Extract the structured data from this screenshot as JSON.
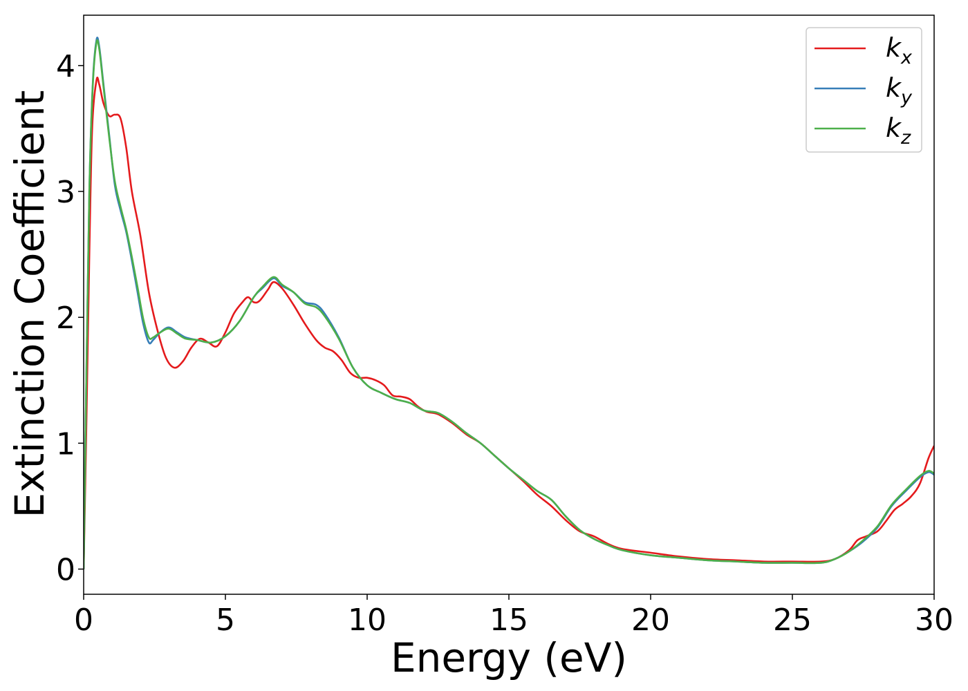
{
  "chart_data": {
    "type": "line",
    "title": "",
    "xlabel": "Energy (eV)",
    "ylabel": "Extinction Coefficient",
    "xlim": [
      0,
      30
    ],
    "ylim": [
      -0.2,
      4.4
    ],
    "xticks": [
      0,
      5,
      10,
      15,
      20,
      25,
      30
    ],
    "yticks": [
      0,
      1,
      2,
      3,
      4
    ],
    "grid": false,
    "legend": "top-right",
    "series": [
      {
        "name": "k",
        "subscript": "x",
        "color": "#e41a1c",
        "points": [
          [
            0,
            0
          ],
          [
            0.1,
            1.2
          ],
          [
            0.2,
            2.5
          ],
          [
            0.3,
            3.5
          ],
          [
            0.45,
            3.88
          ],
          [
            0.55,
            3.85
          ],
          [
            0.7,
            3.7
          ],
          [
            0.9,
            3.6
          ],
          [
            1.1,
            3.61
          ],
          [
            1.3,
            3.58
          ],
          [
            1.5,
            3.35
          ],
          [
            1.7,
            3.0
          ],
          [
            2.0,
            2.65
          ],
          [
            2.3,
            2.2
          ],
          [
            2.6,
            1.9
          ],
          [
            2.9,
            1.68
          ],
          [
            3.2,
            1.6
          ],
          [
            3.5,
            1.65
          ],
          [
            3.8,
            1.76
          ],
          [
            4.1,
            1.83
          ],
          [
            4.4,
            1.8
          ],
          [
            4.7,
            1.77
          ],
          [
            5.0,
            1.88
          ],
          [
            5.3,
            2.03
          ],
          [
            5.6,
            2.12
          ],
          [
            5.8,
            2.16
          ],
          [
            6.0,
            2.12
          ],
          [
            6.2,
            2.13
          ],
          [
            6.5,
            2.22
          ],
          [
            6.7,
            2.28
          ],
          [
            7.0,
            2.23
          ],
          [
            7.4,
            2.1
          ],
          [
            7.8,
            1.95
          ],
          [
            8.2,
            1.82
          ],
          [
            8.5,
            1.76
          ],
          [
            8.8,
            1.73
          ],
          [
            9.1,
            1.66
          ],
          [
            9.4,
            1.56
          ],
          [
            9.7,
            1.52
          ],
          [
            10.0,
            1.52
          ],
          [
            10.3,
            1.5
          ],
          [
            10.6,
            1.46
          ],
          [
            10.9,
            1.38
          ],
          [
            11.2,
            1.37
          ],
          [
            11.5,
            1.35
          ],
          [
            11.8,
            1.29
          ],
          [
            12.1,
            1.25
          ],
          [
            12.5,
            1.23
          ],
          [
            13.0,
            1.16
          ],
          [
            13.5,
            1.07
          ],
          [
            14.0,
            1.0
          ],
          [
            14.5,
            0.9
          ],
          [
            15.0,
            0.8
          ],
          [
            15.5,
            0.7
          ],
          [
            16.0,
            0.59
          ],
          [
            16.5,
            0.5
          ],
          [
            17.0,
            0.39
          ],
          [
            17.5,
            0.3
          ],
          [
            18.0,
            0.26
          ],
          [
            18.5,
            0.2
          ],
          [
            19.0,
            0.16
          ],
          [
            20.0,
            0.13
          ],
          [
            21.0,
            0.1
          ],
          [
            22.0,
            0.08
          ],
          [
            23.0,
            0.07
          ],
          [
            24.0,
            0.06
          ],
          [
            25.0,
            0.06
          ],
          [
            26.0,
            0.06
          ],
          [
            26.5,
            0.08
          ],
          [
            27.0,
            0.15
          ],
          [
            27.3,
            0.23
          ],
          [
            27.6,
            0.26
          ],
          [
            28.0,
            0.3
          ],
          [
            28.3,
            0.38
          ],
          [
            28.6,
            0.47
          ],
          [
            28.9,
            0.52
          ],
          [
            29.2,
            0.58
          ],
          [
            29.5,
            0.68
          ],
          [
            29.8,
            0.88
          ],
          [
            30.0,
            0.98
          ]
        ]
      },
      {
        "name": "k",
        "subscript": "y",
        "color": "#377eb8",
        "points": [
          [
            0,
            0
          ],
          [
            0.1,
            1.6
          ],
          [
            0.2,
            3.0
          ],
          [
            0.32,
            3.85
          ],
          [
            0.45,
            4.2
          ],
          [
            0.55,
            4.15
          ],
          [
            0.7,
            3.85
          ],
          [
            0.9,
            3.45
          ],
          [
            1.1,
            3.05
          ],
          [
            1.3,
            2.85
          ],
          [
            1.5,
            2.68
          ],
          [
            1.7,
            2.45
          ],
          [
            1.9,
            2.2
          ],
          [
            2.1,
            1.95
          ],
          [
            2.3,
            1.8
          ],
          [
            2.45,
            1.82
          ],
          [
            2.7,
            1.88
          ],
          [
            3.0,
            1.92
          ],
          [
            3.3,
            1.88
          ],
          [
            3.6,
            1.84
          ],
          [
            4.0,
            1.82
          ],
          [
            4.5,
            1.8
          ],
          [
            5.0,
            1.85
          ],
          [
            5.5,
            1.97
          ],
          [
            6.0,
            2.16
          ],
          [
            6.3,
            2.23
          ],
          [
            6.7,
            2.31
          ],
          [
            7.0,
            2.25
          ],
          [
            7.4,
            2.2
          ],
          [
            7.8,
            2.12
          ],
          [
            8.2,
            2.1
          ],
          [
            8.5,
            2.03
          ],
          [
            9.0,
            1.84
          ],
          [
            9.5,
            1.6
          ],
          [
            10.0,
            1.46
          ],
          [
            10.5,
            1.4
          ],
          [
            11.0,
            1.35
          ],
          [
            11.5,
            1.32
          ],
          [
            12.0,
            1.26
          ],
          [
            12.5,
            1.24
          ],
          [
            13.0,
            1.17
          ],
          [
            13.5,
            1.08
          ],
          [
            14.0,
            1.0
          ],
          [
            14.5,
            0.9
          ],
          [
            15.0,
            0.8
          ],
          [
            15.5,
            0.71
          ],
          [
            16.0,
            0.62
          ],
          [
            16.5,
            0.55
          ],
          [
            17.0,
            0.42
          ],
          [
            17.5,
            0.31
          ],
          [
            18.0,
            0.24
          ],
          [
            18.5,
            0.19
          ],
          [
            19.0,
            0.15
          ],
          [
            20.0,
            0.11
          ],
          [
            21.0,
            0.09
          ],
          [
            22.0,
            0.07
          ],
          [
            23.0,
            0.06
          ],
          [
            24.0,
            0.05
          ],
          [
            25.0,
            0.05
          ],
          [
            26.0,
            0.05
          ],
          [
            26.5,
            0.08
          ],
          [
            27.0,
            0.14
          ],
          [
            27.5,
            0.22
          ],
          [
            28.0,
            0.33
          ],
          [
            28.5,
            0.5
          ],
          [
            29.0,
            0.62
          ],
          [
            29.5,
            0.73
          ],
          [
            29.8,
            0.77
          ],
          [
            30.0,
            0.75
          ]
        ]
      },
      {
        "name": "k",
        "subscript": "z",
        "color": "#4daf4a",
        "points": [
          [
            0,
            0
          ],
          [
            0.1,
            1.6
          ],
          [
            0.2,
            3.0
          ],
          [
            0.32,
            3.83
          ],
          [
            0.45,
            4.18
          ],
          [
            0.55,
            4.13
          ],
          [
            0.7,
            3.83
          ],
          [
            0.9,
            3.43
          ],
          [
            1.1,
            3.08
          ],
          [
            1.3,
            2.88
          ],
          [
            1.5,
            2.7
          ],
          [
            1.7,
            2.48
          ],
          [
            1.9,
            2.24
          ],
          [
            2.1,
            1.99
          ],
          [
            2.3,
            1.84
          ],
          [
            2.45,
            1.84
          ],
          [
            2.7,
            1.88
          ],
          [
            3.0,
            1.91
          ],
          [
            3.3,
            1.87
          ],
          [
            3.6,
            1.83
          ],
          [
            4.0,
            1.82
          ],
          [
            4.5,
            1.8
          ],
          [
            5.0,
            1.85
          ],
          [
            5.5,
            1.97
          ],
          [
            6.0,
            2.16
          ],
          [
            6.3,
            2.24
          ],
          [
            6.7,
            2.32
          ],
          [
            7.0,
            2.26
          ],
          [
            7.4,
            2.2
          ],
          [
            7.8,
            2.11
          ],
          [
            8.2,
            2.08
          ],
          [
            8.5,
            2.01
          ],
          [
            9.0,
            1.83
          ],
          [
            9.5,
            1.6
          ],
          [
            10.0,
            1.46
          ],
          [
            10.5,
            1.4
          ],
          [
            11.0,
            1.35
          ],
          [
            11.5,
            1.32
          ],
          [
            12.0,
            1.26
          ],
          [
            12.5,
            1.24
          ],
          [
            13.0,
            1.17
          ],
          [
            13.5,
            1.08
          ],
          [
            14.0,
            1.0
          ],
          [
            14.5,
            0.9
          ],
          [
            15.0,
            0.8
          ],
          [
            15.5,
            0.71
          ],
          [
            16.0,
            0.62
          ],
          [
            16.5,
            0.55
          ],
          [
            17.0,
            0.42
          ],
          [
            17.5,
            0.31
          ],
          [
            18.0,
            0.24
          ],
          [
            18.5,
            0.19
          ],
          [
            19.0,
            0.15
          ],
          [
            20.0,
            0.11
          ],
          [
            21.0,
            0.09
          ],
          [
            22.0,
            0.07
          ],
          [
            23.0,
            0.06
          ],
          [
            24.0,
            0.05
          ],
          [
            25.0,
            0.05
          ],
          [
            26.0,
            0.05
          ],
          [
            26.5,
            0.08
          ],
          [
            27.0,
            0.14
          ],
          [
            27.5,
            0.23
          ],
          [
            28.0,
            0.34
          ],
          [
            28.5,
            0.51
          ],
          [
            29.0,
            0.63
          ],
          [
            29.5,
            0.74
          ],
          [
            29.8,
            0.78
          ],
          [
            30.0,
            0.76
          ]
        ]
      }
    ]
  }
}
